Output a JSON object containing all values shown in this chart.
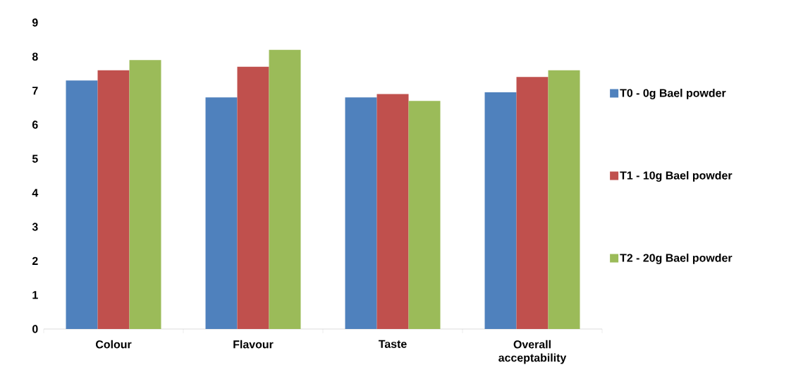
{
  "chart_data": {
    "type": "bar",
    "categories": [
      "Colour",
      "Flavour",
      "Taste",
      "Overall acceptability"
    ],
    "series": [
      {
        "name": "T0 - 0g Bael powder",
        "color": "#4f81bd",
        "values": [
          7.3,
          6.8,
          6.8,
          6.95
        ]
      },
      {
        "name": "T1 - 10g Bael powder",
        "color": "#c0504d",
        "values": [
          7.6,
          7.7,
          6.9,
          7.4
        ]
      },
      {
        "name": "T2 - 20g Bael powder",
        "color": "#9bbb59",
        "values": [
          7.9,
          8.2,
          6.7,
          7.6
        ]
      }
    ],
    "ylim": [
      0,
      9
    ],
    "yticks": [
      0,
      1,
      2,
      3,
      4,
      5,
      6,
      7,
      8,
      9
    ],
    "grid": false,
    "legend": "right"
  }
}
